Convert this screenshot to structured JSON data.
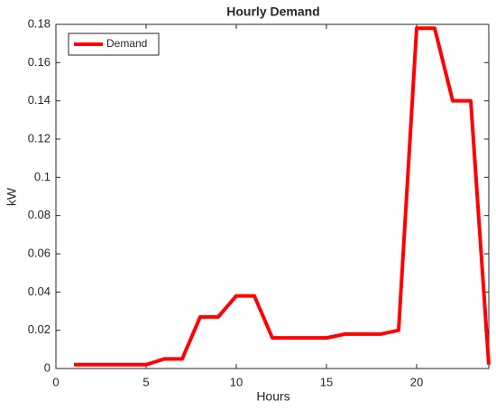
{
  "chart_data": {
    "type": "line",
    "title": "Hourly Demand",
    "x_label": "Hours",
    "y_label": "kW",
    "x": [
      1,
      2,
      3,
      4,
      5,
      6,
      7,
      8,
      9,
      10,
      11,
      12,
      13,
      14,
      15,
      16,
      17,
      18,
      19,
      20,
      21,
      22,
      23,
      24
    ],
    "series": [
      {
        "name": "Demand",
        "color": "#ff0000",
        "values": [
          0.002,
          0.002,
          0.002,
          0.002,
          0.002,
          0.005,
          0.005,
          0.027,
          0.027,
          0.038,
          0.038,
          0.016,
          0.016,
          0.016,
          0.016,
          0.018,
          0.018,
          0.018,
          0.02,
          0.178,
          0.178,
          0.14,
          0.14,
          0.002
        ]
      }
    ],
    "xlim": [
      0,
      24
    ],
    "xticks": [
      0,
      5,
      10,
      15,
      20
    ],
    "ylim": [
      0,
      0.18
    ],
    "yticks": [
      0,
      0.02,
      0.04,
      0.06,
      0.08,
      0.1,
      0.12,
      0.14,
      0.16,
      0.18
    ],
    "grid": false,
    "legend": "top-left"
  }
}
